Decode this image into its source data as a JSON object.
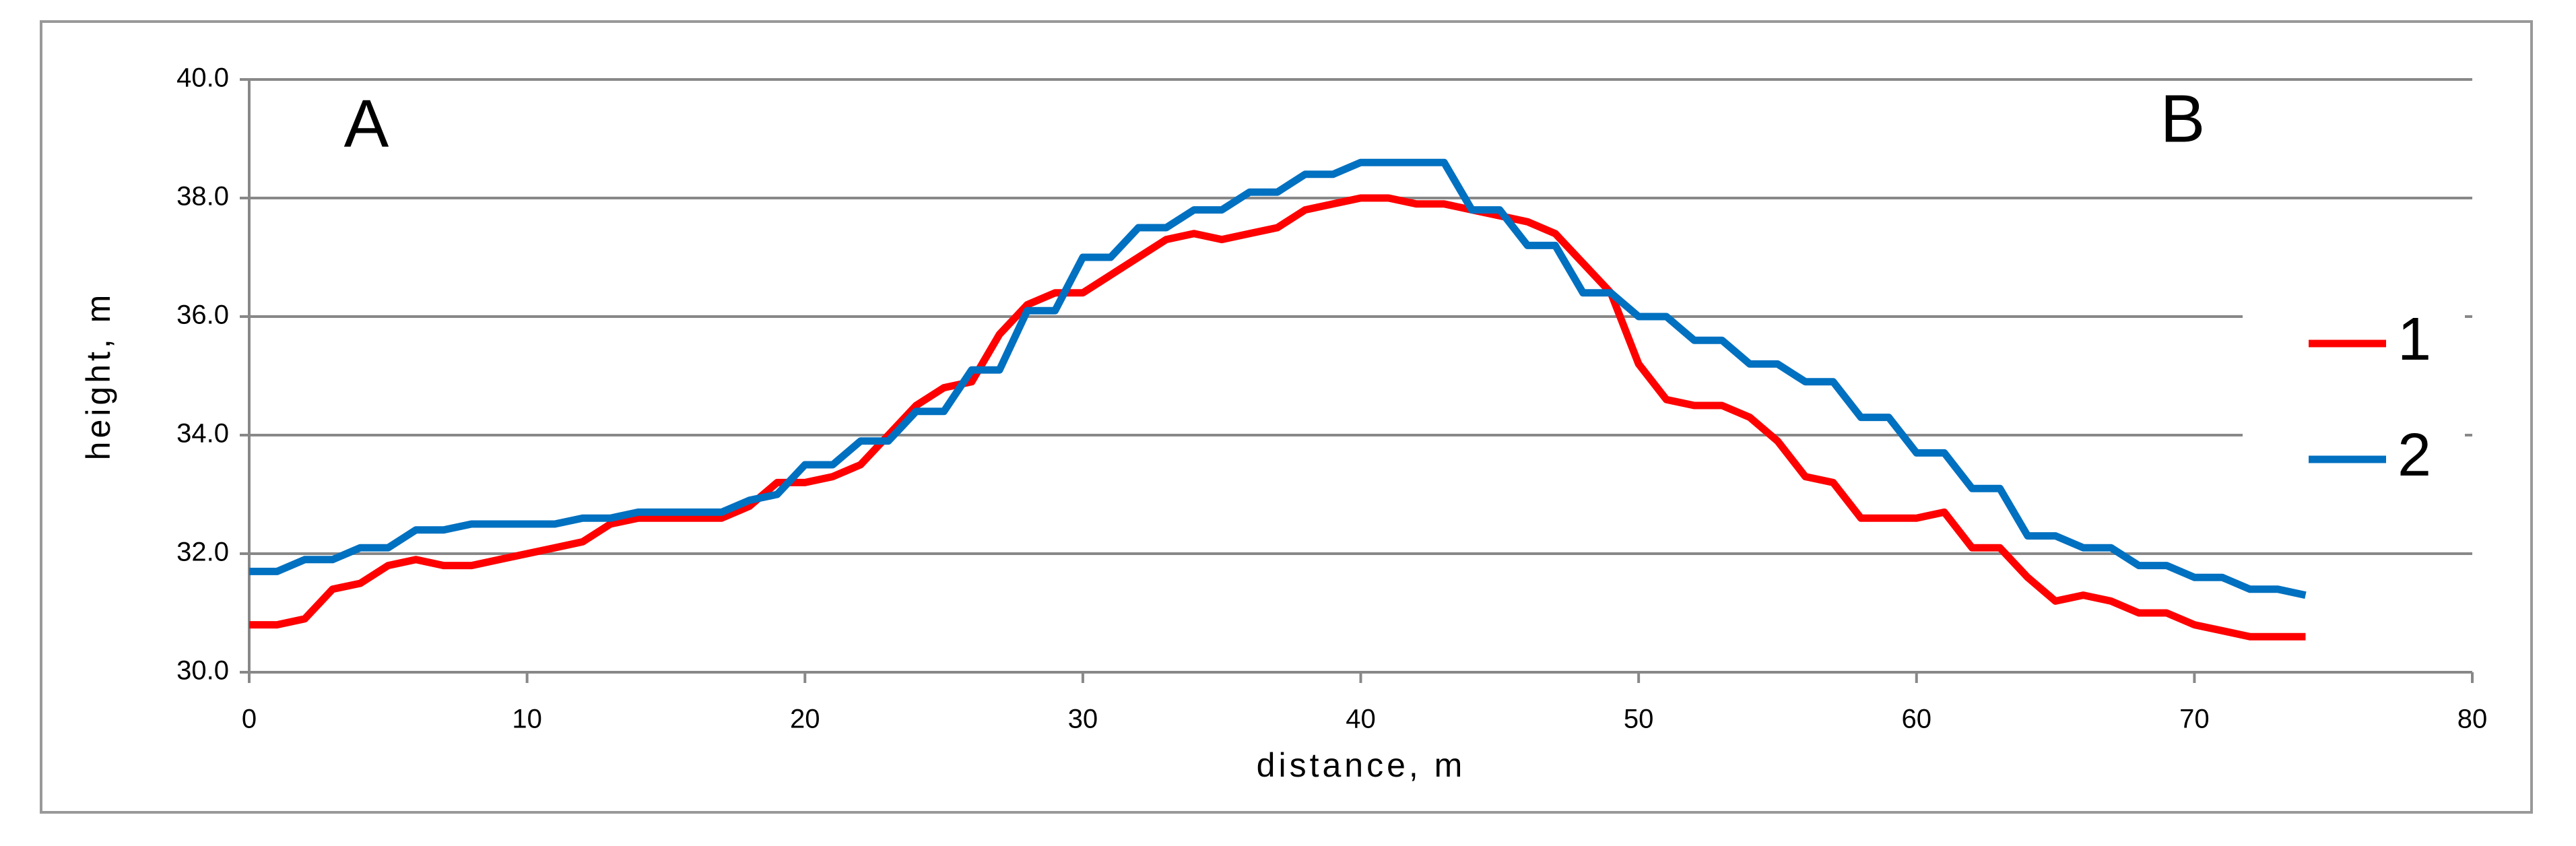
{
  "chart_data": {
    "type": "line",
    "x_label": "distance, m",
    "y_label": "height, m",
    "annotations": [
      "A",
      "B"
    ],
    "x": [
      0,
      1,
      2,
      3,
      4,
      5,
      6,
      7,
      8,
      9,
      10,
      11,
      12,
      13,
      14,
      15,
      16,
      17,
      18,
      19,
      20,
      21,
      22,
      23,
      24,
      25,
      26,
      27,
      28,
      29,
      30,
      31,
      32,
      33,
      34,
      35,
      36,
      37,
      38,
      39,
      40,
      41,
      42,
      43,
      44,
      45,
      46,
      47,
      48,
      49,
      50,
      51,
      52,
      53,
      54,
      55,
      56,
      57,
      58,
      59,
      60,
      61,
      62,
      63,
      64,
      65,
      66,
      67,
      68,
      69,
      70,
      71,
      72,
      73,
      74
    ],
    "series": [
      {
        "name": "1",
        "color": "#ff0000",
        "values": [
          30.8,
          30.8,
          30.9,
          31.4,
          31.5,
          31.8,
          31.9,
          31.8,
          31.8,
          31.9,
          32.0,
          32.1,
          32.2,
          32.5,
          32.6,
          32.6,
          32.6,
          32.6,
          32.8,
          33.2,
          33.2,
          33.3,
          33.5,
          34.0,
          34.5,
          34.8,
          34.9,
          35.7,
          36.2,
          36.4,
          36.4,
          36.7,
          37.0,
          37.3,
          37.4,
          37.3,
          37.4,
          37.5,
          37.8,
          37.9,
          38.0,
          38.0,
          37.9,
          37.9,
          37.8,
          37.7,
          37.6,
          37.4,
          36.9,
          36.4,
          35.2,
          34.6,
          34.5,
          34.5,
          34.3,
          33.9,
          33.3,
          33.2,
          32.6,
          32.6,
          32.6,
          32.7,
          32.1,
          32.1,
          31.6,
          31.2,
          31.3,
          31.2,
          31.0,
          31.0,
          30.8,
          30.7,
          30.6,
          30.6,
          30.6
        ]
      },
      {
        "name": "2",
        "color": "#0070c0",
        "values": [
          31.7,
          31.7,
          31.9,
          31.9,
          32.1,
          32.1,
          32.4,
          32.4,
          32.5,
          32.5,
          32.5,
          32.5,
          32.6,
          32.6,
          32.7,
          32.7,
          32.7,
          32.7,
          32.9,
          33.0,
          33.5,
          33.5,
          33.9,
          33.9,
          34.4,
          34.4,
          35.1,
          35.1,
          36.1,
          36.1,
          37.0,
          37.0,
          37.5,
          37.5,
          37.8,
          37.8,
          38.1,
          38.1,
          38.4,
          38.4,
          38.6,
          38.6,
          38.6,
          38.6,
          37.8,
          37.8,
          37.2,
          37.2,
          36.4,
          36.4,
          36.0,
          36.0,
          35.6,
          35.6,
          35.2,
          35.2,
          34.9,
          34.9,
          34.3,
          34.3,
          33.7,
          33.7,
          33.1,
          33.1,
          32.3,
          32.3,
          32.1,
          32.1,
          31.8,
          31.8,
          31.6,
          31.6,
          31.4,
          31.4,
          31.3
        ]
      }
    ],
    "xlim": [
      0,
      80
    ],
    "xticks": [
      0,
      10,
      20,
      30,
      40,
      50,
      60,
      70,
      80
    ],
    "ylim": [
      30,
      40
    ],
    "yticks": [
      {
        "value": 30,
        "label": "30.0"
      },
      {
        "value": 32,
        "label": "32.0"
      },
      {
        "value": 34,
        "label": "34.0"
      },
      {
        "value": 36,
        "label": "36.0"
      },
      {
        "value": 38,
        "label": "38.0"
      },
      {
        "value": 40,
        "label": "40.0"
      }
    ],
    "grid": true,
    "legend": "right"
  }
}
